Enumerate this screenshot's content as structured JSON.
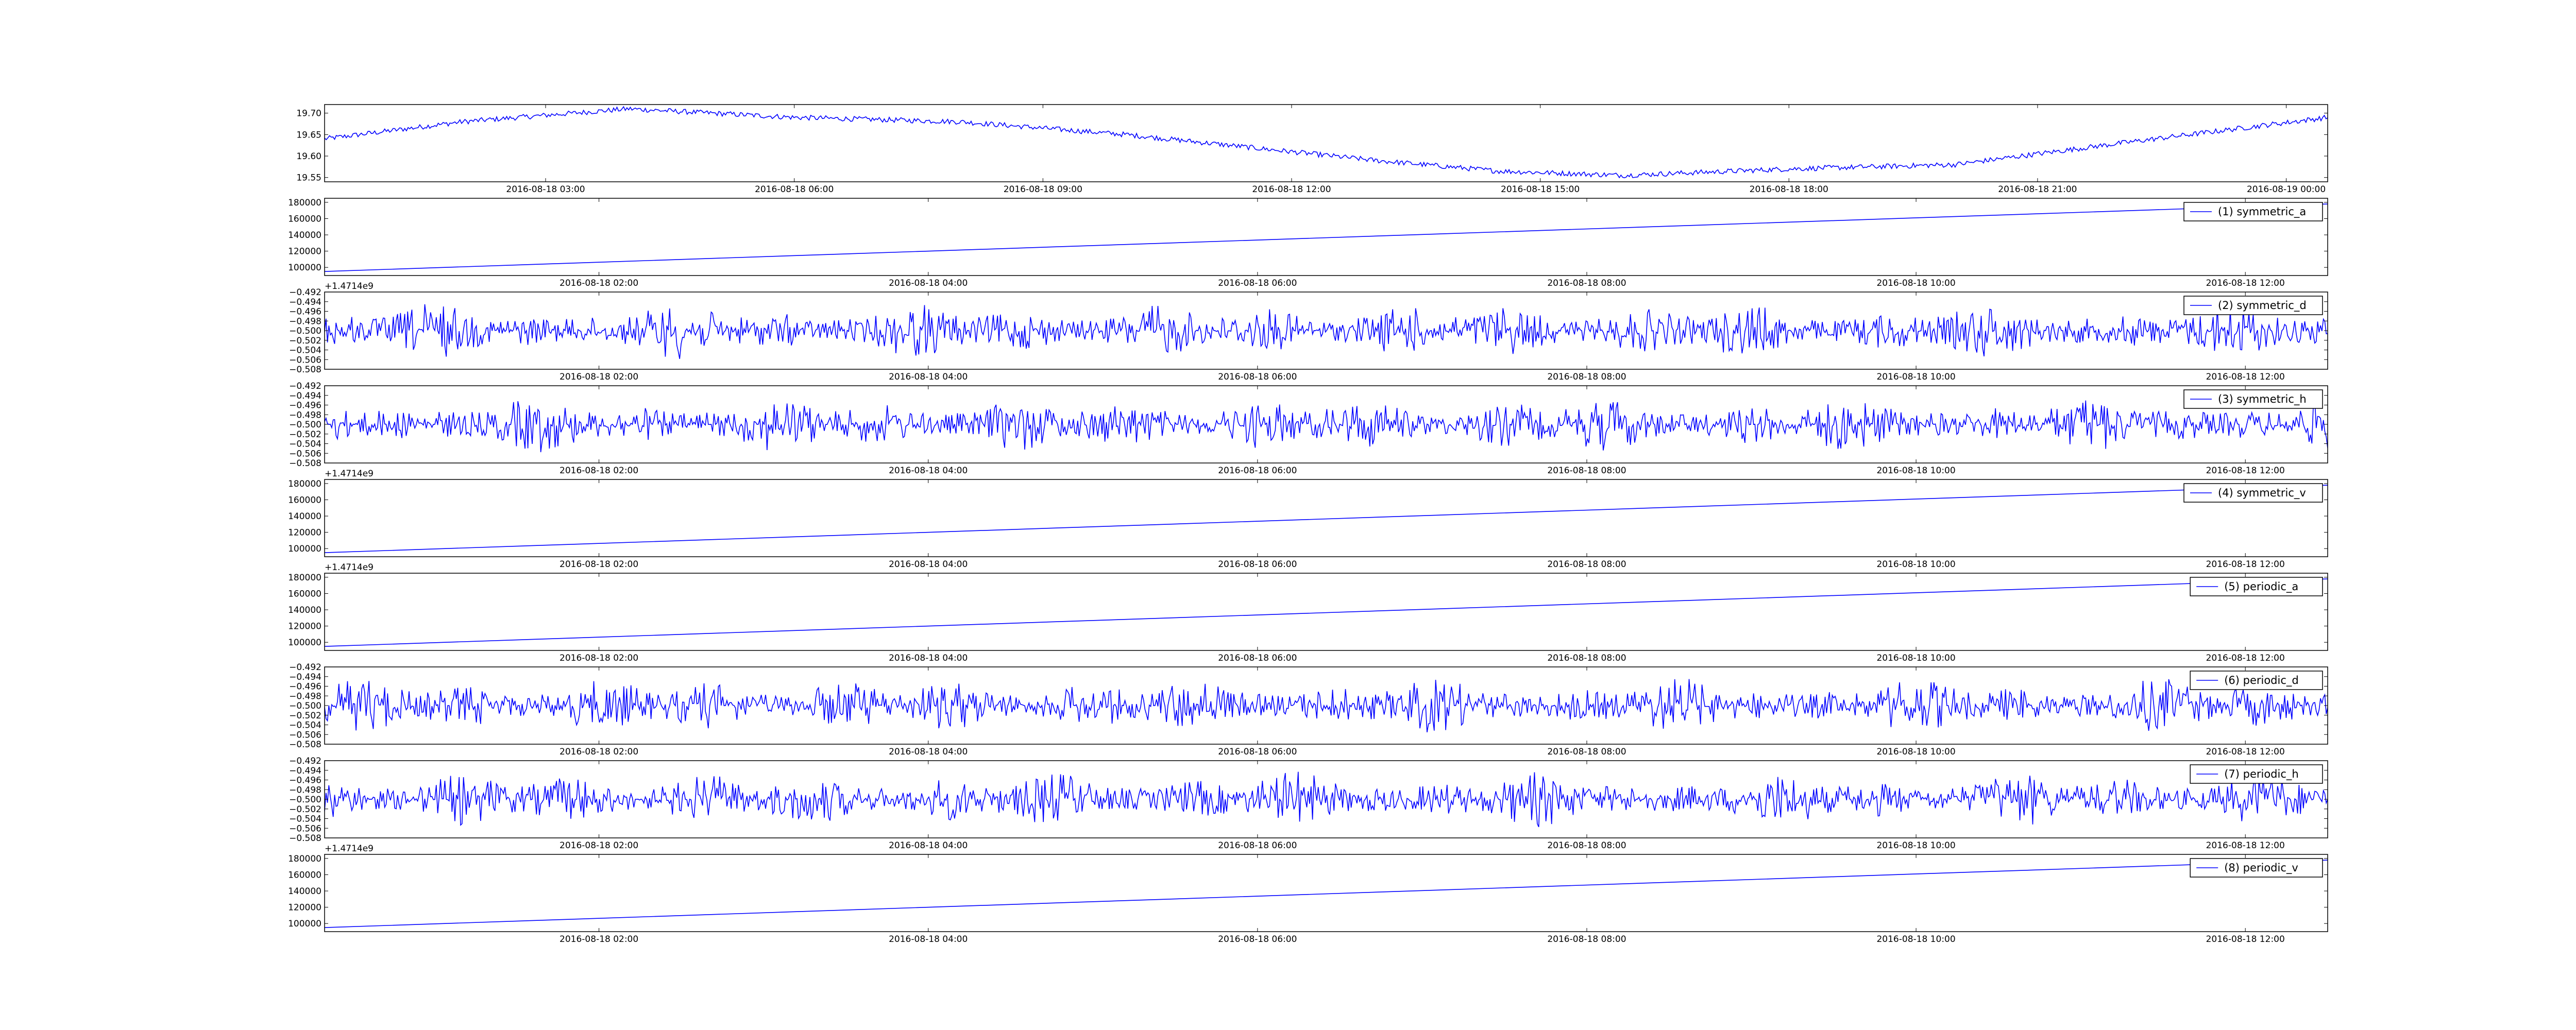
{
  "figure": {
    "background": "#ffffff",
    "line_color": "#0000ff",
    "axes_color": "#000000",
    "legend_border": "#000000"
  },
  "chart_data": [
    {
      "type": "line",
      "title": "",
      "xlabel": "",
      "ylabel": "",
      "x_tick_labels": [
        "2016-08-18 03:00",
        "2016-08-18 06:00",
        "2016-08-18 09:00",
        "2016-08-18 12:00",
        "2016-08-18 15:00",
        "2016-08-18 18:00",
        "2016-08-18 21:00",
        "2016-08-19 00:00"
      ],
      "xlim": [
        "2016-08-18 00:20",
        "2016-08-19 00:30"
      ],
      "x_offset_label": "",
      "ylim": [
        19.54,
        19.72
      ],
      "y_ticks": [
        19.55,
        19.6,
        19.65,
        19.7
      ],
      "y_tick_labels": [
        "19.55",
        "19.60",
        "19.65",
        "19.70"
      ],
      "legend": "",
      "shape": "drift",
      "series": [
        {
          "x": [
            "2016-08-18 00:20",
            "2016-08-18 02:00",
            "2016-08-18 04:00",
            "2016-08-18 06:00",
            "2016-08-18 08:00",
            "2016-08-18 10:00",
            "2016-08-18 11:30",
            "2016-08-18 13:00",
            "2016-08-18 14:30",
            "2016-08-18 16:00",
            "2016-08-18 18:00",
            "2016-08-18 20:00",
            "2016-08-18 22:00",
            "2016-08-19 00:30"
          ],
          "y": [
            19.64,
            19.68,
            19.71,
            19.69,
            19.68,
            19.65,
            19.62,
            19.59,
            19.565,
            19.555,
            19.57,
            19.58,
            19.63,
            19.69
          ]
        }
      ]
    },
    {
      "type": "line",
      "title": "",
      "xlabel": "",
      "ylabel": "",
      "x_tick_labels": [
        "2016-08-18 02:00",
        "2016-08-18 04:00",
        "2016-08-18 06:00",
        "2016-08-18 08:00",
        "2016-08-18 10:00",
        "2016-08-18 12:00"
      ],
      "xlim": [
        "2016-08-18 00:20",
        "2016-08-18 12:30"
      ],
      "x_offset_label": "+1.4714e9",
      "ylim": [
        90000,
        185000
      ],
      "y_ticks": [
        100000,
        120000,
        140000,
        160000,
        180000
      ],
      "y_tick_labels": [
        "100000",
        "120000",
        "140000",
        "160000",
        "180000"
      ],
      "legend": "(1) symmetric_a",
      "shape": "linear",
      "series": [
        {
          "x": [
            "2016-08-18 00:20",
            "2016-08-18 12:30"
          ],
          "y": [
            95000,
            178000
          ]
        }
      ]
    },
    {
      "type": "line",
      "title": "",
      "xlabel": "",
      "ylabel": "",
      "x_tick_labels": [
        "2016-08-18 02:00",
        "2016-08-18 04:00",
        "2016-08-18 06:00",
        "2016-08-18 08:00",
        "2016-08-18 10:00",
        "2016-08-18 12:00"
      ],
      "xlim": [
        "2016-08-18 00:20",
        "2016-08-18 12:30"
      ],
      "x_offset_label": "",
      "ylim": [
        -0.508,
        -0.492
      ],
      "y_ticks": [
        -0.508,
        -0.506,
        -0.504,
        -0.502,
        -0.5,
        -0.498,
        -0.496,
        -0.494,
        -0.492
      ],
      "y_tick_labels": [
        "−0.508",
        "−0.506",
        "−0.504",
        "−0.502",
        "−0.500",
        "−0.498",
        "−0.496",
        "−0.494",
        "−0.492"
      ],
      "legend": "(2) symmetric_d",
      "shape": "noise",
      "series": [
        {
          "center": -0.5,
          "amplitude": 0.006
        }
      ]
    },
    {
      "type": "line",
      "title": "",
      "xlabel": "",
      "ylabel": "",
      "x_tick_labels": [
        "2016-08-18 02:00",
        "2016-08-18 04:00",
        "2016-08-18 06:00",
        "2016-08-18 08:00",
        "2016-08-18 10:00",
        "2016-08-18 12:00"
      ],
      "xlim": [
        "2016-08-18 00:20",
        "2016-08-18 12:30"
      ],
      "x_offset_label": "+1.4714e9",
      "ylim": [
        -0.508,
        -0.492
      ],
      "y_ticks": [
        -0.508,
        -0.506,
        -0.504,
        -0.502,
        -0.5,
        -0.498,
        -0.496,
        -0.494,
        -0.492
      ],
      "y_tick_labels": [
        "−0.508",
        "−0.506",
        "−0.504",
        "−0.502",
        "−0.500",
        "−0.498",
        "−0.496",
        "−0.494",
        "−0.492"
      ],
      "legend": "(3) symmetric_h",
      "shape": "noise",
      "series": [
        {
          "center": -0.5,
          "amplitude": 0.006
        }
      ]
    },
    {
      "type": "line",
      "title": "",
      "xlabel": "",
      "ylabel": "",
      "x_tick_labels": [
        "2016-08-18 02:00",
        "2016-08-18 04:00",
        "2016-08-18 06:00",
        "2016-08-18 08:00",
        "2016-08-18 10:00",
        "2016-08-18 12:00"
      ],
      "xlim": [
        "2016-08-18 00:20",
        "2016-08-18 12:30"
      ],
      "x_offset_label": "+1.4714e9",
      "ylim": [
        90000,
        185000
      ],
      "y_ticks": [
        100000,
        120000,
        140000,
        160000,
        180000
      ],
      "y_tick_labels": [
        "100000",
        "120000",
        "140000",
        "160000",
        "180000"
      ],
      "legend": "(4) symmetric_v",
      "shape": "linear",
      "series": [
        {
          "x": [
            "2016-08-18 00:20",
            "2016-08-18 12:30"
          ],
          "y": [
            95000,
            178000
          ]
        }
      ]
    },
    {
      "type": "line",
      "title": "",
      "xlabel": "",
      "ylabel": "",
      "x_tick_labels": [
        "2016-08-18 02:00",
        "2016-08-18 04:00",
        "2016-08-18 06:00",
        "2016-08-18 08:00",
        "2016-08-18 10:00",
        "2016-08-18 12:00"
      ],
      "xlim": [
        "2016-08-18 00:20",
        "2016-08-18 12:30"
      ],
      "x_offset_label": "",
      "ylim": [
        90000,
        185000
      ],
      "y_ticks": [
        100000,
        120000,
        140000,
        160000,
        180000
      ],
      "y_tick_labels": [
        "100000",
        "120000",
        "140000",
        "160000",
        "180000"
      ],
      "legend": "(5) periodic_a",
      "shape": "linear",
      "series": [
        {
          "x": [
            "2016-08-18 00:20",
            "2016-08-18 12:30"
          ],
          "y": [
            95000,
            178000
          ]
        }
      ]
    },
    {
      "type": "line",
      "title": "",
      "xlabel": "",
      "ylabel": "",
      "x_tick_labels": [
        "2016-08-18 02:00",
        "2016-08-18 04:00",
        "2016-08-18 06:00",
        "2016-08-18 08:00",
        "2016-08-18 10:00",
        "2016-08-18 12:00"
      ],
      "xlim": [
        "2016-08-18 00:20",
        "2016-08-18 12:30"
      ],
      "x_offset_label": "",
      "ylim": [
        -0.508,
        -0.492
      ],
      "y_ticks": [
        -0.508,
        -0.506,
        -0.504,
        -0.502,
        -0.5,
        -0.498,
        -0.496,
        -0.494,
        -0.492
      ],
      "y_tick_labels": [
        "−0.508",
        "−0.506",
        "−0.504",
        "−0.502",
        "−0.500",
        "−0.498",
        "−0.496",
        "−0.494",
        "−0.492"
      ],
      "legend": "(6) periodic_d",
      "shape": "noise",
      "series": [
        {
          "center": -0.5,
          "amplitude": 0.006
        }
      ]
    },
    {
      "type": "line",
      "title": "",
      "xlabel": "",
      "ylabel": "",
      "x_tick_labels": [
        "2016-08-18 02:00",
        "2016-08-18 04:00",
        "2016-08-18 06:00",
        "2016-08-18 08:00",
        "2016-08-18 10:00",
        "2016-08-18 12:00"
      ],
      "xlim": [
        "2016-08-18 00:20",
        "2016-08-18 12:30"
      ],
      "x_offset_label": "+1.4714e9",
      "ylim": [
        -0.508,
        -0.492
      ],
      "y_ticks": [
        -0.508,
        -0.506,
        -0.504,
        -0.502,
        -0.5,
        -0.498,
        -0.496,
        -0.494,
        -0.492
      ],
      "y_tick_labels": [
        "−0.508",
        "−0.506",
        "−0.504",
        "−0.502",
        "−0.500",
        "−0.498",
        "−0.496",
        "−0.494",
        "−0.492"
      ],
      "legend": "(7) periodic_h",
      "shape": "noise",
      "series": [
        {
          "center": -0.5,
          "amplitude": 0.006
        }
      ]
    },
    {
      "type": "line",
      "title": "",
      "xlabel": "",
      "ylabel": "",
      "x_tick_labels": [
        "2016-08-18 02:00",
        "2016-08-18 04:00",
        "2016-08-18 06:00",
        "2016-08-18 08:00",
        "2016-08-18 10:00",
        "2016-08-18 12:00"
      ],
      "xlim": [
        "2016-08-18 00:20",
        "2016-08-18 12:30"
      ],
      "x_offset_label": "",
      "ylim": [
        90000,
        185000
      ],
      "y_ticks": [
        100000,
        120000,
        140000,
        160000,
        180000
      ],
      "y_tick_labels": [
        "100000",
        "120000",
        "140000",
        "160000",
        "180000"
      ],
      "legend": "(8) periodic_v",
      "shape": "linear",
      "series": [
        {
          "x": [
            "2016-08-18 00:20",
            "2016-08-18 12:30"
          ],
          "y": [
            95000,
            178000
          ]
        }
      ]
    }
  ]
}
